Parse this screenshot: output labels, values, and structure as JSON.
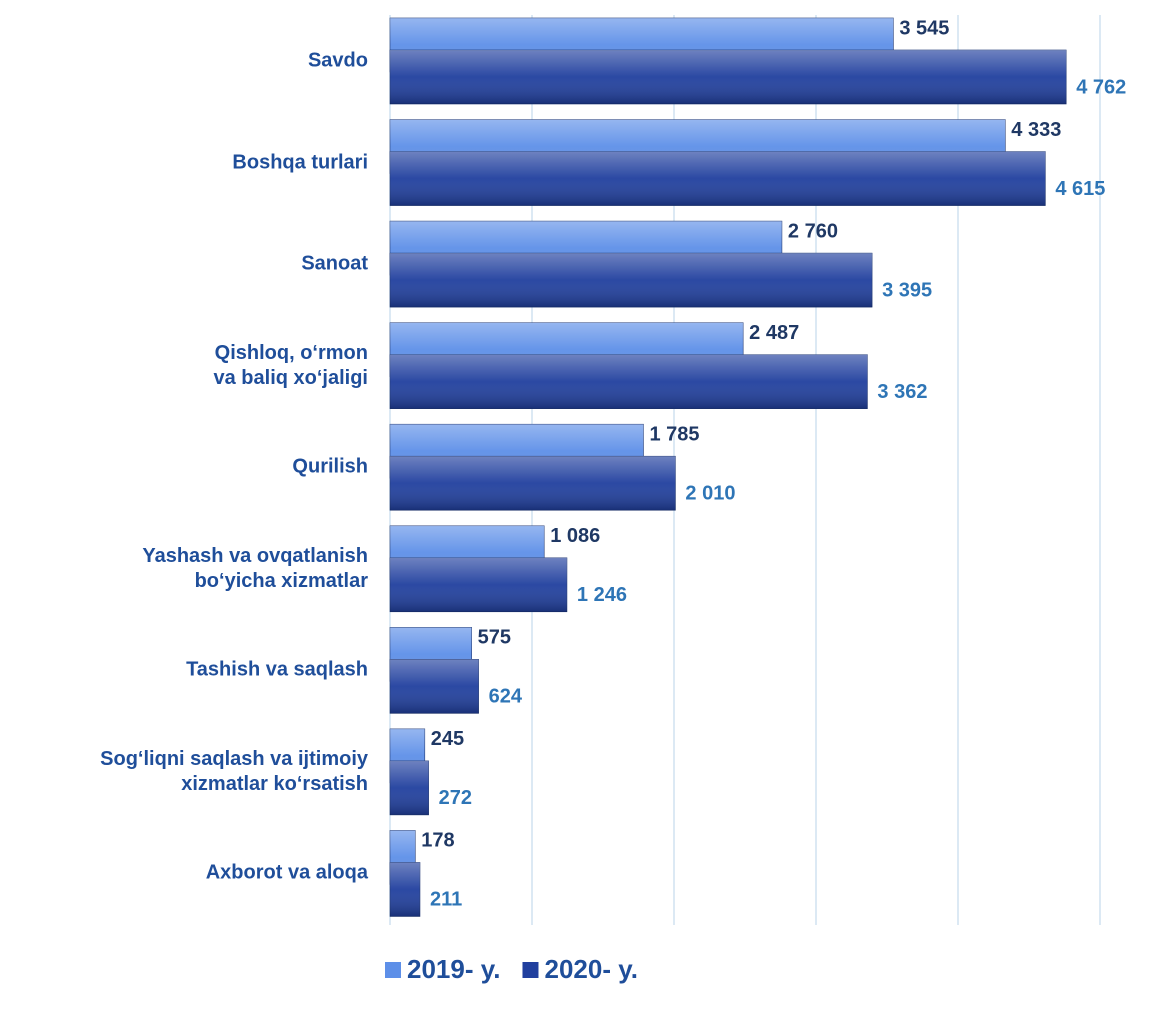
{
  "chart_data": {
    "type": "hbar",
    "categories": [
      "Savdo",
      "Boshqa turlari",
      "Sanoat",
      "Qishloq, o‘rmon\nva baliq xo‘jaligi",
      "Qurilish",
      "Yashash va ovqatlanish\nbo‘yicha xizmatlar",
      "Tashish va saqlash",
      "Sog‘liqni saqlash va ijtimoiy\nxizmatlar ko‘rsatish",
      "Axborot va aloqa"
    ],
    "series": [
      {
        "name": "2019- y.",
        "color": "#5d8fe8",
        "label_color": "#1f3864",
        "values": [
          3545,
          4333,
          2760,
          2487,
          1785,
          1086,
          575,
          245,
          178
        ],
        "value_labels": [
          "3 545",
          "4 333",
          "2 760",
          "2 487",
          "1 785",
          "1 086",
          "575",
          "245",
          "178"
        ]
      },
      {
        "name": "2020- y.",
        "color": "#203f9e",
        "label_color": "#2e75b6",
        "values": [
          4762,
          4615,
          3395,
          3362,
          2010,
          1246,
          624,
          272,
          211
        ],
        "value_labels": [
          "4 762",
          "4 615",
          "3 395",
          "3 362",
          "2 010",
          "1 246",
          "624",
          "272",
          "211"
        ]
      }
    ],
    "xlim": [
      0,
      5000
    ],
    "xticks": [
      0,
      1000,
      2000,
      3000,
      4000,
      5000
    ],
    "grid": true
  }
}
